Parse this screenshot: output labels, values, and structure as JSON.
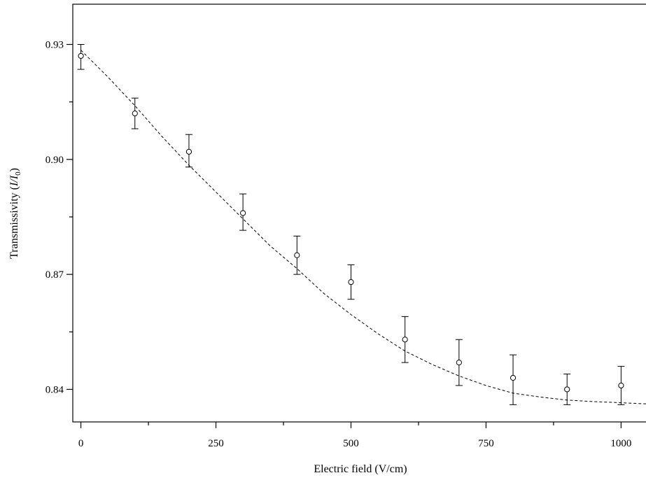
{
  "chart_data": {
    "type": "scatter",
    "title": "",
    "xlabel": "Electric field (V/cm)",
    "ylabel": "Transmissivity (I/I0)",
    "ylabel_parts": {
      "prefix": "Transmissivity (",
      "i": "I",
      "slash": "/",
      "i0": "I",
      "sub": "0",
      "suffix": ")"
    },
    "xlim": [
      -15,
      1050
    ],
    "ylim": [
      0.8315,
      0.9405
    ],
    "xticks": [
      0,
      250,
      500,
      750,
      1000
    ],
    "xtick_labels": [
      "0",
      "250",
      "500",
      "750",
      "1000"
    ],
    "xminor": [
      125,
      375,
      625,
      875
    ],
    "yticks": [
      0.84,
      0.87,
      0.9,
      0.93
    ],
    "ytick_labels": [
      "0.84",
      "0.87",
      "0.90",
      "0.93"
    ],
    "yminor": [
      0.855,
      0.885,
      0.915
    ],
    "grid": false,
    "series": [
      {
        "marker": "open-circle",
        "x": [
          0,
          100,
          200,
          300,
          400,
          500,
          600,
          700,
          800,
          900,
          1000
        ],
        "y": [
          0.927,
          0.912,
          0.902,
          0.886,
          0.875,
          0.868,
          0.853,
          0.847,
          0.843,
          0.84,
          0.841
        ],
        "err_low": [
          0.0035,
          0.004,
          0.004,
          0.0045,
          0.005,
          0.0045,
          0.006,
          0.006,
          0.007,
          0.004,
          0.005
        ],
        "err_high": [
          0.003,
          0.004,
          0.0045,
          0.005,
          0.005,
          0.0045,
          0.006,
          0.006,
          0.006,
          0.004,
          0.005
        ]
      }
    ],
    "fit": {
      "style": "dashed",
      "x": [
        0,
        50,
        100,
        150,
        200,
        250,
        300,
        350,
        400,
        450,
        500,
        550,
        600,
        650,
        700,
        750,
        800,
        850,
        900,
        950,
        1000,
        1050
      ],
      "y": [
        0.9285,
        0.9215,
        0.914,
        0.906,
        0.8985,
        0.8915,
        0.8845,
        0.8775,
        0.8715,
        0.865,
        0.8595,
        0.8545,
        0.85,
        0.8465,
        0.8435,
        0.841,
        0.839,
        0.838,
        0.8372,
        0.8368,
        0.8365,
        0.8362
      ]
    }
  }
}
